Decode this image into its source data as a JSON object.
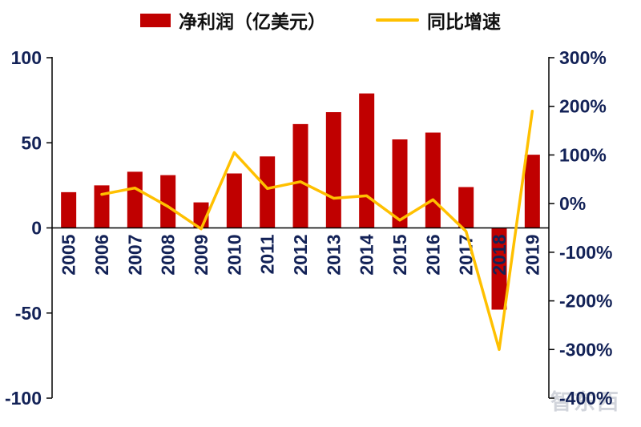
{
  "watermark": {
    "text": "智东西"
  },
  "chart_data": {
    "type": "bar+line",
    "title": "",
    "categories": [
      "2005",
      "2006",
      "2007",
      "2008",
      "2009",
      "2010",
      "2011",
      "2012",
      "2013",
      "2014",
      "2015",
      "2016",
      "2017",
      "2018",
      "2019"
    ],
    "series": [
      {
        "name": "净利润（亿美元）",
        "type": "bar",
        "axis": "left",
        "color": "#C00000",
        "values": [
          21,
          25,
          33,
          31,
          15,
          32,
          42,
          61,
          68,
          79,
          52,
          56,
          24,
          -48,
          43
        ]
      },
      {
        "name": "同比增速",
        "type": "line",
        "axis": "right",
        "color": "#FFC000",
        "unit": "%",
        "values": [
          null,
          19,
          32,
          -6,
          -52,
          105,
          31,
          45,
          11,
          16,
          -34,
          8,
          -57,
          -300,
          190
        ]
      }
    ],
    "left_axis": {
      "min": -100,
      "max": 100,
      "ticks": [
        100,
        50,
        0,
        -50,
        -100
      ]
    },
    "right_axis": {
      "min": -400,
      "max": 300,
      "ticks": [
        "300%",
        "200%",
        "100%",
        "0%",
        "-100%",
        "-200%",
        "-300%",
        "-400%"
      ]
    },
    "legend_position": "top",
    "grid": false
  }
}
